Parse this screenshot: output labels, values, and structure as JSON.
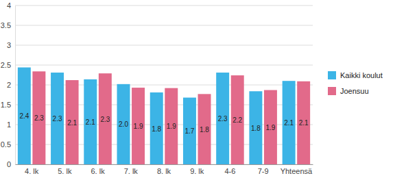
{
  "chart_data": {
    "type": "bar",
    "categories": [
      "4. lk",
      "5. lk",
      "6. lk",
      "7. lk",
      "8. lk",
      "9. lk",
      "4-6",
      "7-9",
      "Yhteensä"
    ],
    "series": [
      {
        "name": "Kaikki koulut",
        "color": "#3cb4e6",
        "values": [
          2.44,
          2.31,
          2.14,
          2.02,
          1.81,
          1.68,
          2.31,
          1.84,
          2.1
        ],
        "value_labels": [
          "2.4",
          "2.3",
          "2.1",
          "2.0",
          "1.8",
          "1.7",
          "2.3",
          "1.8",
          "2.1"
        ]
      },
      {
        "name": "Joensuu",
        "color": "#e26a8a",
        "values": [
          2.34,
          2.12,
          2.29,
          1.93,
          1.92,
          1.77,
          2.24,
          1.87,
          2.09
        ],
        "value_labels": [
          "2.3",
          "2.1",
          "2.3",
          "1.9",
          "1.9",
          "1.8",
          "2.2",
          "1.9",
          "2.1"
        ]
      }
    ],
    "ylim": [
      0,
      4
    ],
    "yticks": [
      0,
      0.5,
      1,
      1.5,
      2,
      2.5,
      3,
      3.5,
      4
    ],
    "grid": true,
    "legend": "right",
    "data_labels": true
  }
}
